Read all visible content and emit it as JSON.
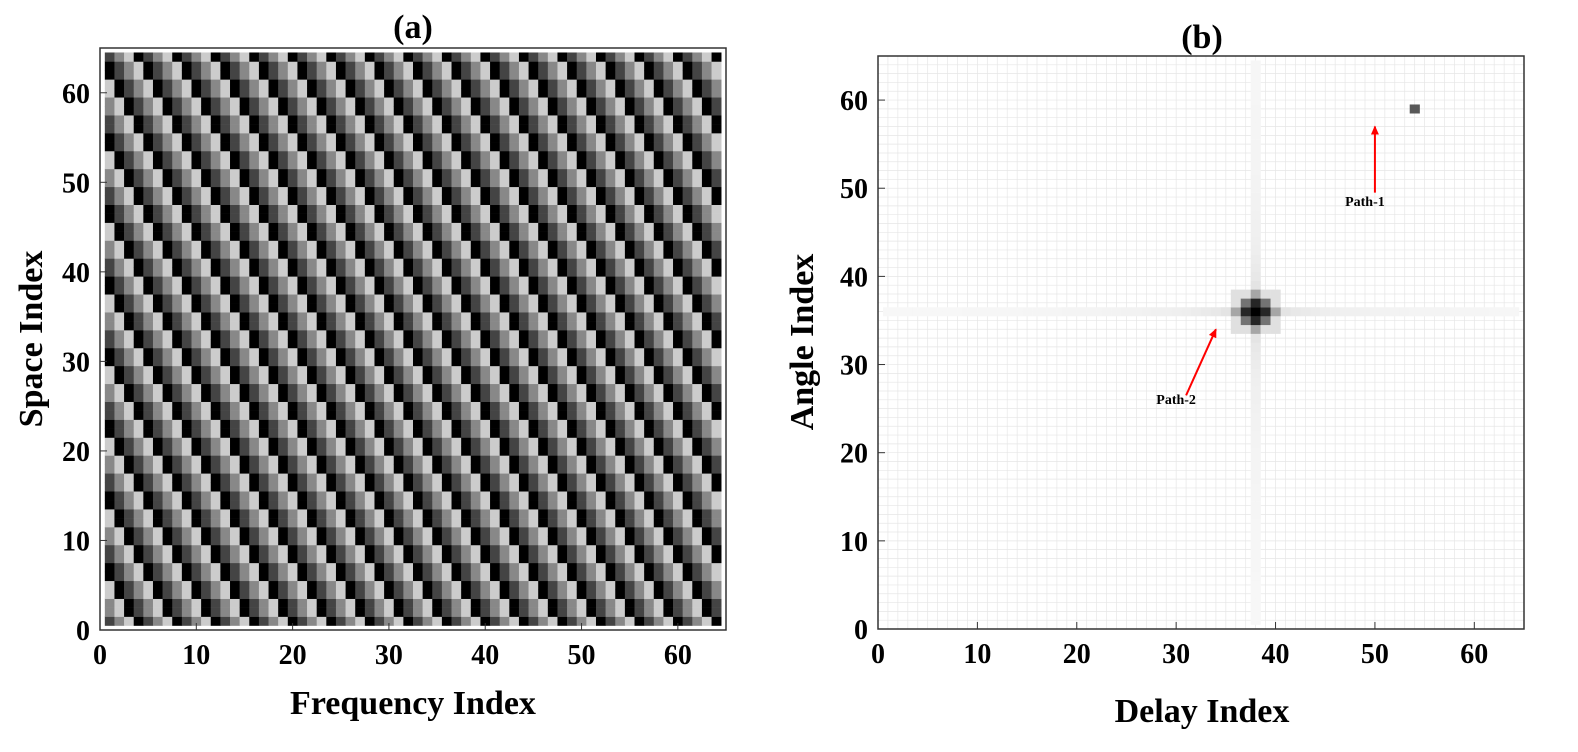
{
  "chart_data": [
    {
      "type": "heatmap",
      "title": "(a)",
      "xlabel": "Frequency Index",
      "ylabel": "Space Index",
      "xlim": [
        0,
        65
      ],
      "ylim": [
        0,
        65
      ],
      "xticks": [
        0,
        10,
        20,
        30,
        40,
        50,
        60
      ],
      "yticks": [
        0,
        10,
        20,
        30,
        40,
        50,
        60
      ],
      "grid": false,
      "colormap": "grayscale",
      "grid_size": [
        64,
        64
      ],
      "cell_range": [
        1,
        64
      ],
      "pattern": "checkerboard with diagonal phase shift (one step per two rows)",
      "levels": [
        "#000000",
        "#444444",
        "#888888",
        "#cccccc"
      ]
    },
    {
      "type": "heatmap",
      "title": "(b)",
      "xlabel": "Delay Index",
      "ylabel": "Angle Index",
      "xlim": [
        0,
        65
      ],
      "ylim": [
        0,
        65
      ],
      "xticks": [
        0,
        10,
        20,
        30,
        40,
        50,
        60
      ],
      "yticks": [
        0,
        10,
        20,
        30,
        40,
        50,
        60
      ],
      "grid": true,
      "colormap": "grayscale",
      "grid_size": [
        64,
        64
      ],
      "peaks": [
        {
          "name": "Path-1",
          "x": 54,
          "y": 59,
          "intensity": 0.65,
          "spread": 0
        },
        {
          "name": "Path-2",
          "x": 38,
          "y": 36,
          "intensity": 1.0,
          "spread": 1
        }
      ],
      "annotations": [
        {
          "text": "Path-1",
          "arrow_from": [
            50,
            49.5
          ],
          "arrow_to": [
            50,
            57
          ],
          "text_at": [
            47,
            48
          ]
        },
        {
          "text": "Path-2",
          "arrow_from": [
            31,
            26.5
          ],
          "arrow_to": [
            34,
            34
          ],
          "text_at": [
            28,
            25.5
          ]
        }
      ],
      "arrow_color": "#ff0000"
    }
  ]
}
